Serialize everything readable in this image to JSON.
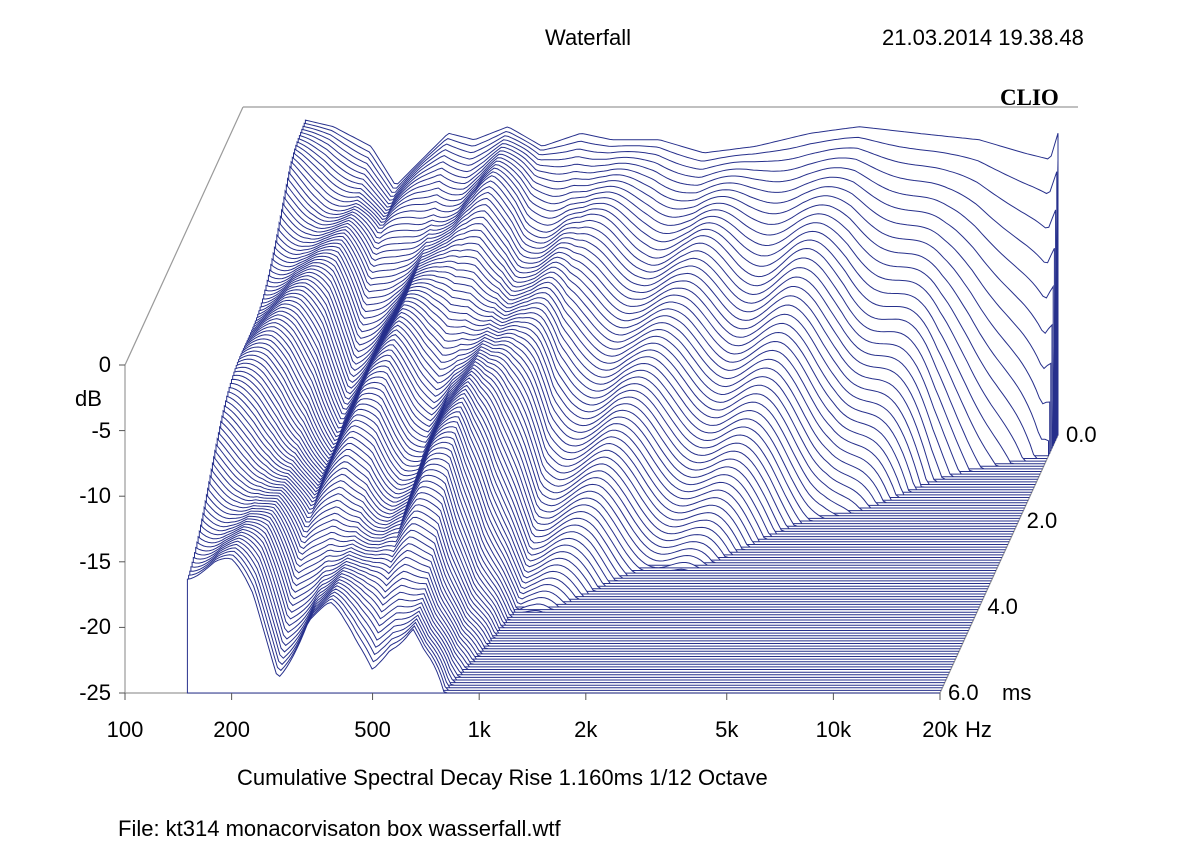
{
  "header": {
    "title": "Waterfall",
    "timestamp": "21.03.2014 19.38.48",
    "brand": "CLIO"
  },
  "footer": {
    "subtitle": "Cumulative Spectral Decay   Rise 1.160ms   1/12 Octave",
    "file": "File: kt314 monacorvisaton box wasserfall.wtf"
  },
  "colors": {
    "trace": "#27308c",
    "axis": "#9a9a9a",
    "background": "#ffffff"
  },
  "chart_data": {
    "type": "area",
    "plot_kind": "waterfall",
    "x_axis": {
      "scale": "log",
      "range": [
        100,
        20000
      ],
      "unit": "Hz",
      "ticks": [
        {
          "value": 100,
          "label": "100"
        },
        {
          "value": 200,
          "label": "200"
        },
        {
          "value": 500,
          "label": "500"
        },
        {
          "value": 1000,
          "label": "1k"
        },
        {
          "value": 2000,
          "label": "2k"
        },
        {
          "value": 5000,
          "label": "5k"
        },
        {
          "value": 10000,
          "label": "10k"
        },
        {
          "value": 20000,
          "label": "20k"
        }
      ]
    },
    "y_axis": {
      "label": "dB",
      "range": [
        -25,
        0
      ],
      "ticks": [
        {
          "value": 0,
          "label": "0"
        },
        {
          "value": -5,
          "label": "-5"
        },
        {
          "value": -10,
          "label": "-10"
        },
        {
          "value": -15,
          "label": "-15"
        },
        {
          "value": -20,
          "label": "-20"
        },
        {
          "value": -25,
          "label": "-25"
        }
      ]
    },
    "z_axis": {
      "unit": "ms",
      "range": [
        0,
        6
      ],
      "ticks": [
        {
          "value": 0,
          "label": "0.0"
        },
        {
          "value": 2,
          "label": "2.0"
        },
        {
          "value": 4,
          "label": "4.0"
        },
        {
          "value": 6,
          "label": "6.0"
        }
      ]
    },
    "slices": 100,
    "response_0ms": [
      {
        "f": 150,
        "db": -1.0
      },
      {
        "f": 180,
        "db": -1.5
      },
      {
        "f": 230,
        "db": -3.0
      },
      {
        "f": 270,
        "db": -6.0
      },
      {
        "f": 320,
        "db": -4.0
      },
      {
        "f": 380,
        "db": -2.0
      },
      {
        "f": 450,
        "db": -2.5
      },
      {
        "f": 560,
        "db": -1.5
      },
      {
        "f": 700,
        "db": -3.0
      },
      {
        "f": 900,
        "db": -2.0
      },
      {
        "f": 1100,
        "db": -2.5
      },
      {
        "f": 1500,
        "db": -2.5
      },
      {
        "f": 2000,
        "db": -3.5
      },
      {
        "f": 2800,
        "db": -3.0
      },
      {
        "f": 4000,
        "db": -2.0
      },
      {
        "f": 5500,
        "db": -1.5
      },
      {
        "f": 8000,
        "db": -2.0
      },
      {
        "f": 12000,
        "db": -2.5
      },
      {
        "f": 16000,
        "db": -3.5
      },
      {
        "f": 19000,
        "db": -4.0
      },
      {
        "f": 20000,
        "db": -2.0
      }
    ],
    "decay_ms_per_band": [
      {
        "f": 150,
        "ms": 6.0
      },
      {
        "f": 200,
        "ms": 6.0
      },
      {
        "f": 270,
        "ms": 5.0
      },
      {
        "f": 330,
        "ms": 5.5
      },
      {
        "f": 420,
        "ms": 4.5
      },
      {
        "f": 500,
        "ms": 4.0
      },
      {
        "f": 650,
        "ms": 5.0
      },
      {
        "f": 800,
        "ms": 3.5
      },
      {
        "f": 1000,
        "ms": 2.5
      },
      {
        "f": 1500,
        "ms": 2.3
      },
      {
        "f": 2000,
        "ms": 2.2
      },
      {
        "f": 3000,
        "ms": 1.8
      },
      {
        "f": 5000,
        "ms": 1.3
      },
      {
        "f": 10000,
        "ms": 0.7
      },
      {
        "f": 20000,
        "ms": 0.3
      }
    ]
  }
}
